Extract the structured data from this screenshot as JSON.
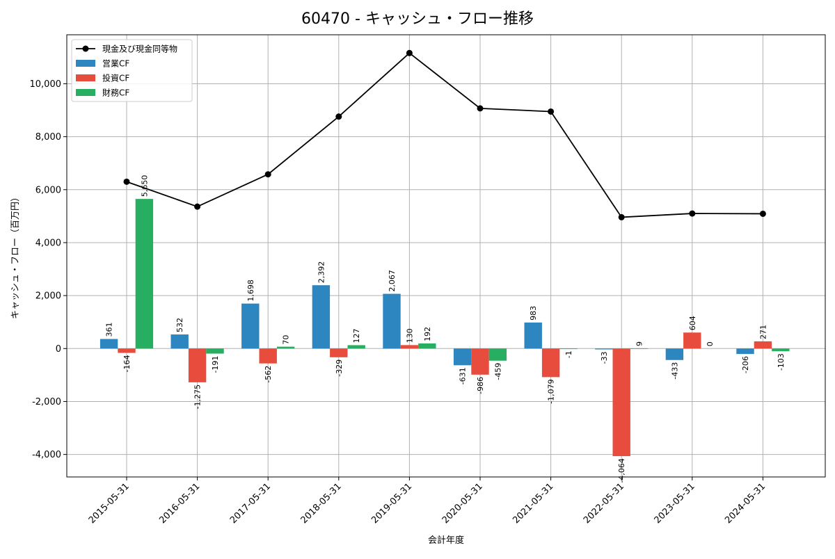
{
  "chart_data": {
    "type": "bar",
    "title": "60470 - キャッシュ・フロー推移",
    "xlabel": "会計年度",
    "ylabel": "キャッシュ・フロー（百万円）",
    "categories": [
      "2015-05-31",
      "2016-05-31",
      "2017-05-31",
      "2018-05-31",
      "2019-05-31",
      "2020-05-31",
      "2021-05-31",
      "2022-05-31",
      "2023-05-31",
      "2024-05-31"
    ],
    "ylim": [
      -4850,
      11850
    ],
    "yticks": [
      -4000,
      -2000,
      0,
      2000,
      4000,
      6000,
      8000,
      10000
    ],
    "ytick_labels": [
      "-4,000",
      "-2,000",
      "0",
      "2,000",
      "4,000",
      "6,000",
      "8,000",
      "10,000"
    ],
    "grid": true,
    "legend_position": "top-left",
    "series": [
      {
        "name": "営業CF",
        "kind": "bar",
        "color": "#2e86c1",
        "values": [
          361,
          532,
          1698,
          2392,
          2067,
          -631,
          983,
          -33,
          -433,
          -206
        ],
        "labels": [
          "361",
          "532",
          "1,698",
          "2,392",
          "2,067",
          "-631",
          "983",
          "-33",
          "-433",
          "-206"
        ]
      },
      {
        "name": "投資CF",
        "kind": "bar",
        "color": "#e74c3c",
        "values": [
          -164,
          -1275,
          -562,
          -329,
          130,
          -986,
          -1079,
          -4064,
          604,
          271
        ],
        "labels": [
          "-164",
          "-1,275",
          "-562",
          "-329",
          "130",
          "-986",
          "-1,079",
          "-4,064",
          "604",
          "271"
        ]
      },
      {
        "name": "財務CF",
        "kind": "bar",
        "color": "#27ae60",
        "values": [
          5650,
          -191,
          70,
          127,
          192,
          -459,
          -1,
          9,
          0,
          -103
        ],
        "labels": [
          "5,650",
          "-191",
          "70",
          "127",
          "192",
          "-459",
          "-1",
          "9",
          "0",
          "-103"
        ]
      },
      {
        "name": "現金及び現金同等物",
        "kind": "line",
        "color": "#000000",
        "values": [
          6300,
          5360,
          6580,
          8760,
          11160,
          9070,
          8950,
          4960,
          5100,
          5090
        ]
      }
    ]
  }
}
